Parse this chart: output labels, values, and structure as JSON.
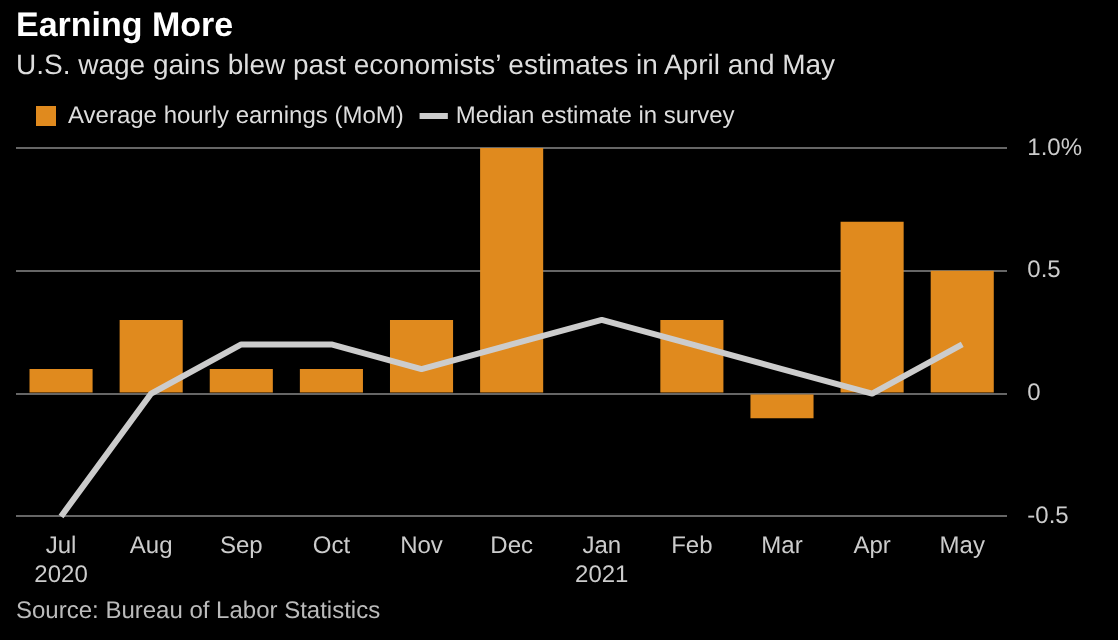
{
  "chart_data": {
    "type": "bar",
    "title": "Earning More",
    "subtitle": "U.S. wage gains blew past economists’ estimates in April and May",
    "categories": [
      "Jul\n2020",
      "Aug",
      "Sep",
      "Oct",
      "Nov",
      "Dec",
      "Jan\n2021",
      "Feb",
      "Mar",
      "Apr",
      "May"
    ],
    "series": [
      {
        "name": "Average hourly earnings (MoM)",
        "color": "#e08a1e",
        "values": [
          0.1,
          0.3,
          0.1,
          0.1,
          0.3,
          1.0,
          0.0,
          0.3,
          -0.1,
          0.7,
          0.5
        ]
      },
      {
        "name": "Median estimate in survey",
        "type": "line",
        "color": "#cccccc",
        "values": [
          -0.5,
          0.0,
          0.2,
          0.2,
          0.1,
          0.2,
          0.3,
          0.2,
          0.1,
          0.0,
          0.2
        ]
      }
    ],
    "ylim": [
      -0.5,
      1.0
    ],
    "yticks": [
      -0.5,
      0,
      0.5,
      {
        "value": 1.0,
        "label": "1.0%"
      }
    ],
    "grid": "y",
    "legend": "top left",
    "marker": "none",
    "annotations": [
      "Source: Bureau of Labor Statistics"
    ]
  }
}
